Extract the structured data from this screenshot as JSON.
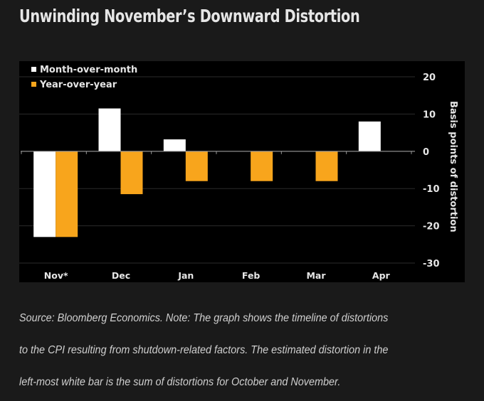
{
  "header": {
    "title": "Unwinding November’s Downward Distortion"
  },
  "colors": {
    "background": "#1a1a1a",
    "plot_background": "#000000",
    "month_over_month": "#ffffff",
    "year_over_year": "#f8a51c",
    "gridline": "#2b2b2b",
    "zero_line": "#9a9a9a",
    "text": "#e6e6e6"
  },
  "chart_data": {
    "type": "bar",
    "title": "Unwinding November’s Downward Distortion",
    "categories": [
      "Nov*",
      "Dec",
      "Jan",
      "Feb",
      "Mar",
      "Apr"
    ],
    "series": [
      {
        "name": "Month-over-month",
        "color": "#ffffff",
        "values": [
          -23,
          11.5,
          3.2,
          0,
          0,
          8
        ]
      },
      {
        "name": "Year-over-year",
        "color": "#f8a51c",
        "values": [
          -23,
          -11.5,
          -8,
          -8,
          -8,
          0
        ]
      }
    ],
    "xlabel": "",
    "ylabel": "Basis points of distortion",
    "ylim": [
      -30,
      20
    ],
    "yticks": [
      20,
      10,
      0,
      -10,
      -20,
      -30
    ],
    "ytick_labels": [
      "20",
      "10",
      "0",
      "-10",
      "-20",
      "-30"
    ],
    "grid": true,
    "legend_position": "top-left",
    "y_axis_side": "right"
  },
  "caption": {
    "lines": [
      "Source: Bloomberg Economics. Note: The graph shows the timeline of distortions",
      "to the CPI resulting from shutdown-related factors. The estimated distortion in the",
      "left-most white bar is the sum of distortions for October and November."
    ]
  }
}
